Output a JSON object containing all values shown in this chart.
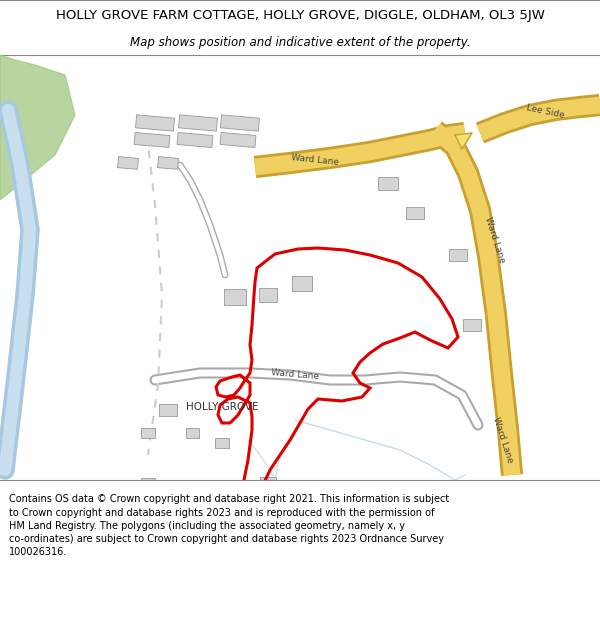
{
  "title": "HOLLY GROVE FARM COTTAGE, HOLLY GROVE, DIGGLE, OLDHAM, OL3 5JW",
  "subtitle": "Map shows position and indicative extent of the property.",
  "footer": "Contains OS data © Crown copyright and database right 2021. This information is subject\nto Crown copyright and database rights 2023 and is reproduced with the permission of\nHM Land Registry. The polygons (including the associated geometry, namely x, y\nco-ordinates) are subject to Crown copyright and database rights 2023 Ordnance Survey\n100026316.",
  "map_bg": "#f2f0ed",
  "road_yellow": "#f0d060",
  "road_yellow_border": "#c8a030",
  "road_gray_fill": "#ffffff",
  "road_gray_border": "#aaaaaa",
  "building_fill": "#d5d5d5",
  "building_border": "#999999",
  "water_color": "#a8c8e0",
  "green_color": "#a0c880",
  "red_color": "#dd0000",
  "text_color": "#444444",
  "title_fontsize": 9.5,
  "subtitle_fontsize": 8.5,
  "footer_fontsize": 7.0,
  "label_fontsize": 6.5
}
